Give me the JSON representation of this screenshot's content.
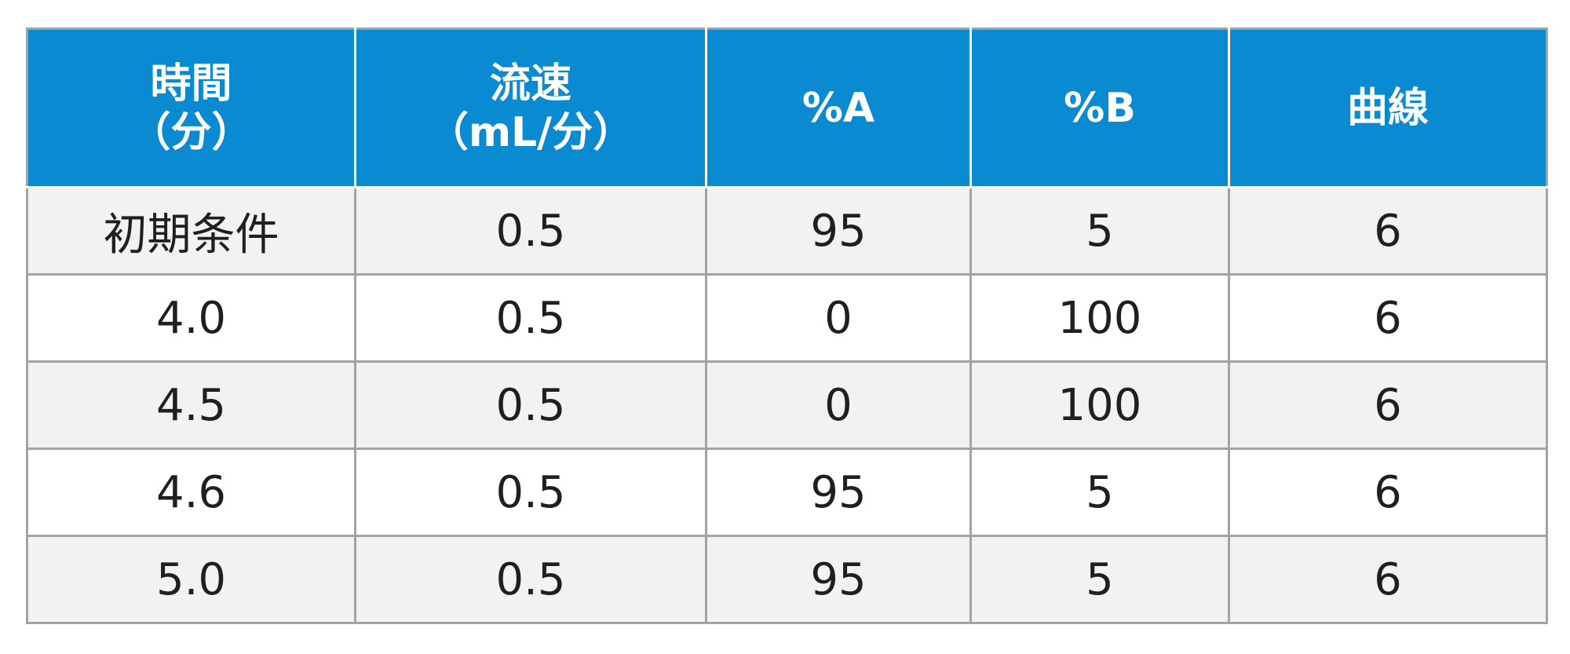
{
  "table": {
    "headers": [
      {
        "line1": "時間",
        "line2": "（分）"
      },
      {
        "line1": "流速",
        "line2": "（mL/分）"
      },
      {
        "line1": "%A",
        "line2": ""
      },
      {
        "line1": "%B",
        "line2": ""
      },
      {
        "line1": "曲線",
        "line2": ""
      }
    ],
    "rows": [
      [
        "初期条件",
        "0.5",
        "95",
        "5",
        "6"
      ],
      [
        "4.0",
        "0.5",
        "0",
        "100",
        "6"
      ],
      [
        "4.5",
        "0.5",
        "0",
        "100",
        "6"
      ],
      [
        "4.6",
        "0.5",
        "95",
        "5",
        "6"
      ],
      [
        "5.0",
        "0.5",
        "95",
        "5",
        "6"
      ]
    ],
    "colors": {
      "header_bg": "#0a8bd1",
      "header_text": "#ffffff",
      "row_alt_bg": "#f2f2f4",
      "row_bg": "#ffffff",
      "border": "#a3a3a3",
      "cell_text": "#1f1f1f"
    }
  }
}
